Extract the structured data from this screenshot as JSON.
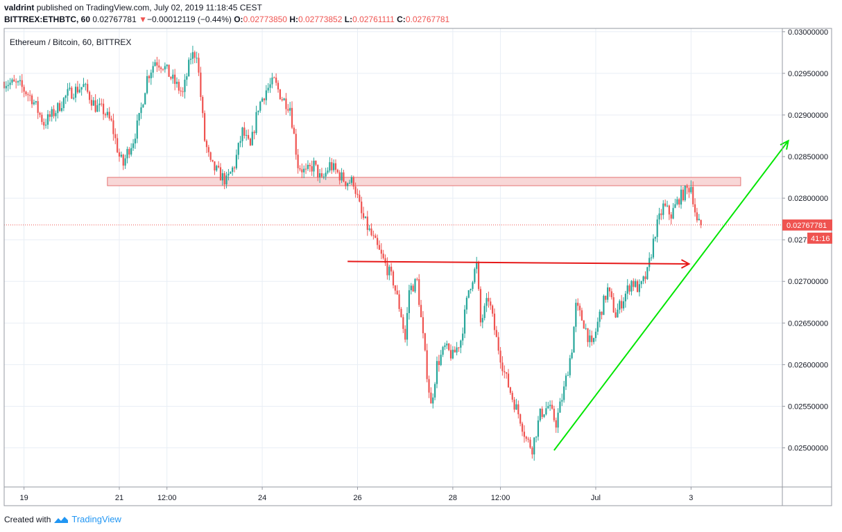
{
  "header": {
    "author": "valdrint",
    "published_text": "published on TradingView.com, July 02, 2019 11:18:45 CEST",
    "symbol": "BITTREX:ETHBTC, 60",
    "last": "0.02767781",
    "change_arrow": "▼",
    "change": "−0.00012119 (−0.44%)",
    "o_label": "O:",
    "o_value": "0.02773850",
    "h_label": "H:",
    "h_value": "0.02773852",
    "l_label": "L:",
    "l_value": "0.02761111",
    "c_label": "C:",
    "c_value": "0.02767781"
  },
  "footer": {
    "created_with": "Created with",
    "brand": "TradingView",
    "icon": "tradingview-logo-icon"
  },
  "colors": {
    "up": "#26a69a",
    "down": "#ef5350",
    "zone": "#f8d7d7",
    "trendline": "#00e600",
    "red_arrow": "#e61919",
    "grid": "#e8eef5"
  },
  "chart_data": {
    "type": "candlestick",
    "title": "Ethereum / Bitcoin, 60, BITTREX",
    "y_ticks": [
      "0.03000000",
      "0.02950000",
      "0.02900000",
      "0.02850000",
      "0.02800000",
      "0.02750000",
      "0.02700000",
      "0.02650000",
      "0.02600000",
      "0.02550000",
      "0.02500000"
    ],
    "y_tick_values": [
      0.03,
      0.0295,
      0.029,
      0.0285,
      0.028,
      0.0275,
      0.027,
      0.0265,
      0.026,
      0.0255,
      0.025
    ],
    "ylim": [
      0.02453,
      0.03004
    ],
    "x_ticks": [
      "19",
      "21",
      "12:00",
      "24",
      "26",
      "28",
      "12:00",
      "Jul",
      "3"
    ],
    "x_tick_positions_hours": [
      0,
      48,
      72,
      120,
      168,
      216,
      240,
      288,
      336
    ],
    "xlim_hours": [
      -10,
      382
    ],
    "last_price_label": "0.02767781",
    "countdown_label": "41:16",
    "last_price": 0.02767781,
    "last_price_line": true,
    "grid": true,
    "anchors": [
      {
        "t": -10,
        "p": 0.0294
      },
      {
        "t": -2,
        "p": 0.02935
      },
      {
        "t": 4,
        "p": 0.0292
      },
      {
        "t": 10,
        "p": 0.0289
      },
      {
        "t": 16,
        "p": 0.02905
      },
      {
        "t": 22,
        "p": 0.02925
      },
      {
        "t": 30,
        "p": 0.02935
      },
      {
        "t": 36,
        "p": 0.0291
      },
      {
        "t": 40,
        "p": 0.02905
      },
      {
        "t": 44,
        "p": 0.0289
      },
      {
        "t": 48,
        "p": 0.0285
      },
      {
        "t": 50,
        "p": 0.0284
      },
      {
        "t": 52,
        "p": 0.02855
      },
      {
        "t": 55,
        "p": 0.0287
      },
      {
        "t": 58,
        "p": 0.02895
      },
      {
        "t": 62,
        "p": 0.02945
      },
      {
        "t": 66,
        "p": 0.02965
      },
      {
        "t": 70,
        "p": 0.0296
      },
      {
        "t": 74,
        "p": 0.02945
      },
      {
        "t": 80,
        "p": 0.02925
      },
      {
        "t": 84,
        "p": 0.0297
      },
      {
        "t": 87,
        "p": 0.02975
      },
      {
        "t": 91,
        "p": 0.0287
      },
      {
        "t": 94,
        "p": 0.0284
      },
      {
        "t": 98,
        "p": 0.0283
      },
      {
        "t": 102,
        "p": 0.0282
      },
      {
        "t": 106,
        "p": 0.0284
      },
      {
        "t": 110,
        "p": 0.0288
      },
      {
        "t": 114,
        "p": 0.0286
      },
      {
        "t": 118,
        "p": 0.0291
      },
      {
        "t": 122,
        "p": 0.0293
      },
      {
        "t": 126,
        "p": 0.0294
      },
      {
        "t": 130,
        "p": 0.0292
      },
      {
        "t": 134,
        "p": 0.0291
      },
      {
        "t": 138,
        "p": 0.0284
      },
      {
        "t": 142,
        "p": 0.0283
      },
      {
        "t": 146,
        "p": 0.0284
      },
      {
        "t": 150,
        "p": 0.0282
      },
      {
        "t": 154,
        "p": 0.0284
      },
      {
        "t": 158,
        "p": 0.0283
      },
      {
        "t": 162,
        "p": 0.0282
      },
      {
        "t": 166,
        "p": 0.0282
      },
      {
        "t": 170,
        "p": 0.0278
      },
      {
        "t": 174,
        "p": 0.0276
      },
      {
        "t": 178,
        "p": 0.0274
      },
      {
        "t": 182,
        "p": 0.0272
      },
      {
        "t": 186,
        "p": 0.027
      },
      {
        "t": 190,
        "p": 0.0266
      },
      {
        "t": 192,
        "p": 0.0263
      },
      {
        "t": 194,
        "p": 0.0269
      },
      {
        "t": 198,
        "p": 0.027
      },
      {
        "t": 202,
        "p": 0.0261
      },
      {
        "t": 205,
        "p": 0.0255
      },
      {
        "t": 208,
        "p": 0.026
      },
      {
        "t": 212,
        "p": 0.0262
      },
      {
        "t": 216,
        "p": 0.0261
      },
      {
        "t": 220,
        "p": 0.0263
      },
      {
        "t": 224,
        "p": 0.0269
      },
      {
        "t": 228,
        "p": 0.0272
      },
      {
        "t": 230,
        "p": 0.0265
      },
      {
        "t": 234,
        "p": 0.0268
      },
      {
        "t": 238,
        "p": 0.0263
      },
      {
        "t": 242,
        "p": 0.0259
      },
      {
        "t": 246,
        "p": 0.0256
      },
      {
        "t": 250,
        "p": 0.02535
      },
      {
        "t": 253,
        "p": 0.0251
      },
      {
        "t": 256,
        "p": 0.025
      },
      {
        "t": 260,
        "p": 0.0254
      },
      {
        "t": 264,
        "p": 0.0255
      },
      {
        "t": 268,
        "p": 0.0253
      },
      {
        "t": 272,
        "p": 0.0257
      },
      {
        "t": 276,
        "p": 0.0262
      },
      {
        "t": 278,
        "p": 0.0267
      },
      {
        "t": 282,
        "p": 0.0265
      },
      {
        "t": 286,
        "p": 0.0262
      },
      {
        "t": 290,
        "p": 0.0266
      },
      {
        "t": 294,
        "p": 0.0269
      },
      {
        "t": 298,
        "p": 0.0266
      },
      {
        "t": 302,
        "p": 0.0268
      },
      {
        "t": 306,
        "p": 0.027
      },
      {
        "t": 310,
        "p": 0.0269
      },
      {
        "t": 314,
        "p": 0.0271
      },
      {
        "t": 318,
        "p": 0.0276
      },
      {
        "t": 322,
        "p": 0.0279
      },
      {
        "t": 326,
        "p": 0.0278
      },
      {
        "t": 330,
        "p": 0.028
      },
      {
        "t": 334,
        "p": 0.0281
      },
      {
        "t": 336,
        "p": 0.02815
      },
      {
        "t": 339,
        "p": 0.0277
      },
      {
        "t": 341,
        "p": 0.02768
      }
    ],
    "last_candle_hour": 341,
    "resistance_zone": {
      "y_low": 0.02815,
      "y_high": 0.02825,
      "t_start": 42,
      "t_end": 361
    },
    "red_arrow": {
      "t_start": 163,
      "p_start": 0.02724,
      "t_end": 335,
      "p_end": 0.02721
    },
    "trendline": {
      "t_start": 267,
      "p_start": 0.02497,
      "t_end": 385,
      "p_end": 0.02869
    }
  }
}
